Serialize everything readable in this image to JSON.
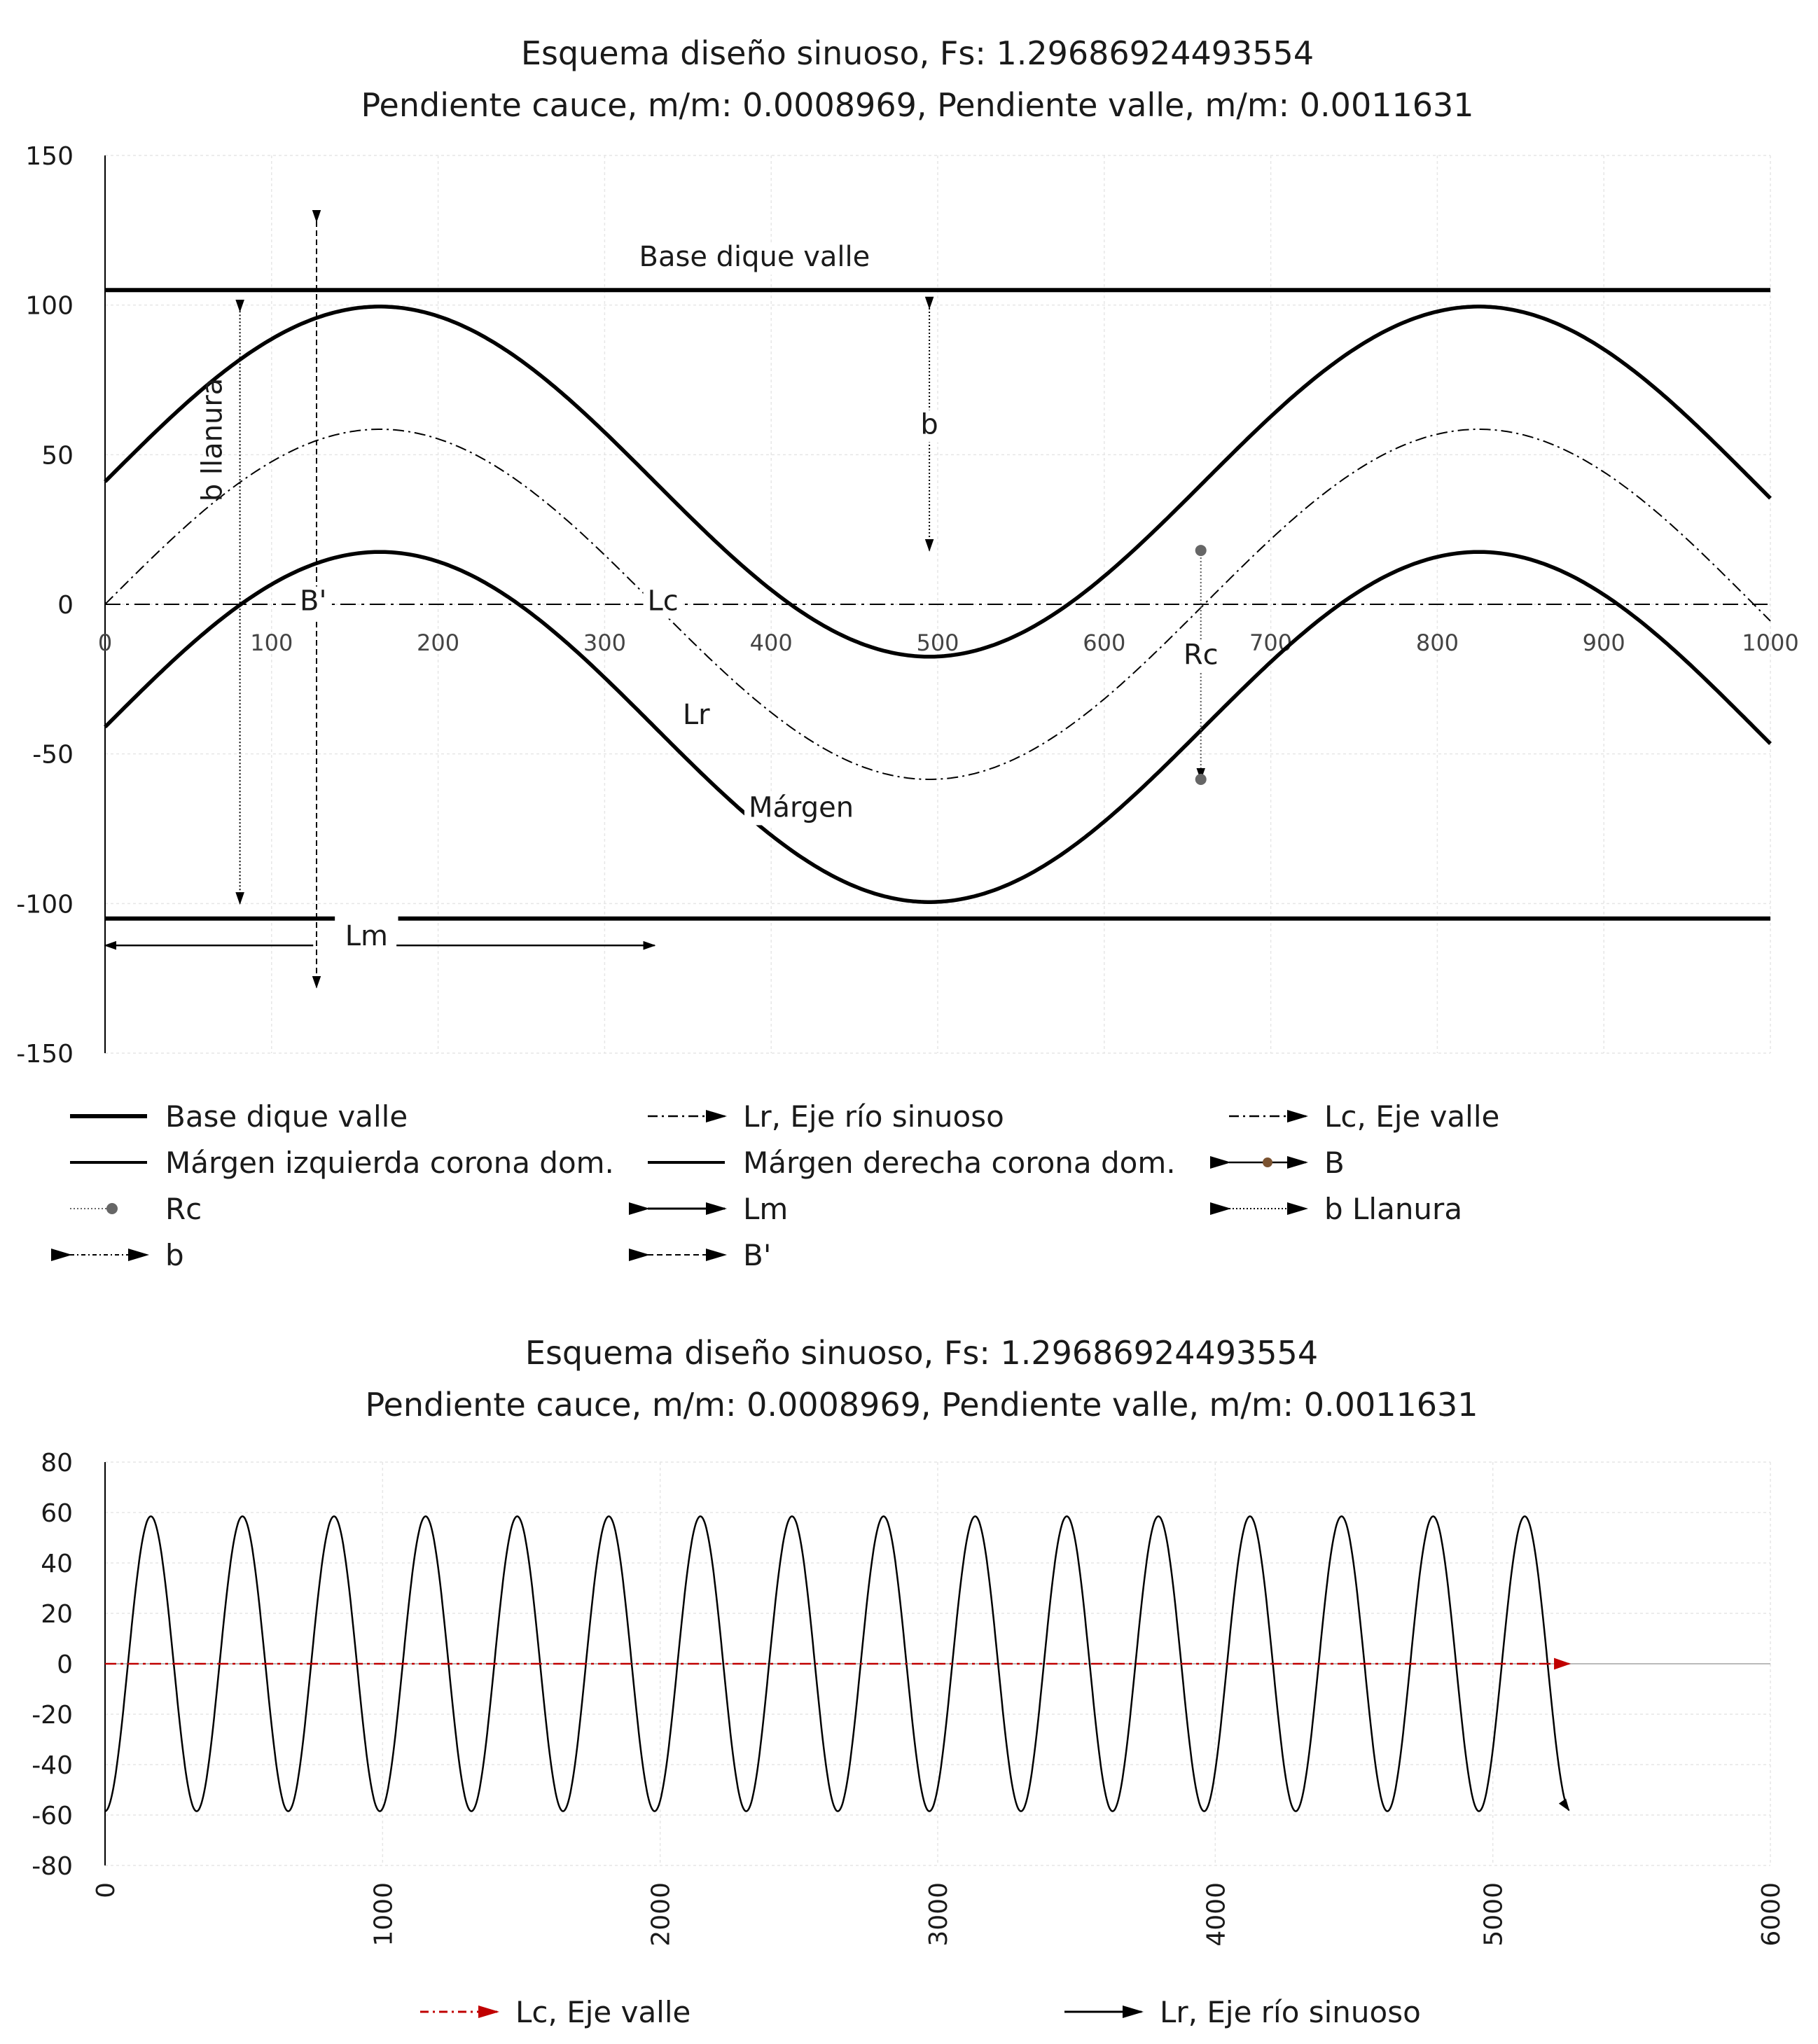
{
  "chart_data": [
    {
      "type": "line",
      "title": "Esquema diseño sinuoso, Fs: 1.29686924493554",
      "subtitle": "Pendiente cauce, m/m: 0.0008969, Pendiente valle, m/m: 0.0011631",
      "xlim": [
        0,
        1000
      ],
      "ylim": [
        -150,
        150
      ],
      "x_ticks": [
        "0",
        "100",
        "200",
        "300",
        "400",
        "500",
        "600",
        "700",
        "800",
        "900",
        "1000"
      ],
      "y_ticks": [
        "150",
        "100",
        "50",
        "0",
        "-50",
        "-100",
        "-150"
      ],
      "grid": true,
      "sine": {
        "amplitude": 58.5,
        "wavelength": 660,
        "phase_x": 165
      },
      "series": [
        {
          "name": "Base dique valle",
          "style": "solid-thick",
          "y": 105
        },
        {
          "name": "Base dique valle",
          "style": "solid-thick",
          "y": -105
        },
        {
          "name": "Lr, Eje río sinuoso",
          "style": "dashdot-thin",
          "offset": 0
        },
        {
          "name": "Lc, Eje valle",
          "style": "dashdot",
          "y": 0
        },
        {
          "name": "Márgen izquierda corona dom.",
          "style": "solid",
          "offset": 41
        },
        {
          "name": "Márgen derecha corona dom.",
          "style": "solid",
          "offset": -41
        }
      ],
      "annotations": [
        {
          "text": "Base dique valle",
          "x": 390,
          "y": 113
        },
        {
          "text": "b llanura",
          "x": 65,
          "y": 55,
          "rotated": true
        },
        {
          "text": "B'",
          "x": 125,
          "y": -2
        },
        {
          "text": "Lc",
          "x": 335,
          "y": -2
        },
        {
          "text": "b",
          "x": 495,
          "y": 57
        },
        {
          "text": "Rc",
          "x": 658,
          "y": -20
        },
        {
          "text": "Lr",
          "x": 355,
          "y": -40
        },
        {
          "text": "Márgen",
          "x": 418,
          "y": -71
        },
        {
          "text": "Lm",
          "x": 157,
          "y": -114
        }
      ],
      "markers": {
        "b_llanura": {
          "x": 81,
          "y1": 98,
          "y2": -100
        },
        "B_prime": {
          "x": 127,
          "y1": 128,
          "y2": -128
        },
        "b": {
          "x": 495,
          "y1": 99,
          "y2": 18
        },
        "Rc": {
          "x": 658,
          "y1": 18,
          "y2": -58.5
        },
        "Lm": {
          "y": -114,
          "x1": 0,
          "x2": 330
        }
      },
      "legend": {
        "position": "bottom",
        "items": [
          {
            "label": "Base dique valle",
            "symbol": "solid-thick"
          },
          {
            "label": "Lr, Eje río sinuoso",
            "symbol": "dashdot-arrow"
          },
          {
            "label": "Lc, Eje valle",
            "symbol": "dashdot-arrow"
          },
          {
            "label": "Márgen izquierda corona dom.",
            "symbol": "solid"
          },
          {
            "label": "Márgen derecha corona dom.",
            "symbol": "solid"
          },
          {
            "label": "B",
            "symbol": "double-arrow-dot-brown"
          },
          {
            "label": "Rc",
            "symbol": "dotted-dot"
          },
          {
            "label": "Lm",
            "symbol": "double-arrow"
          },
          {
            "label": "b Llanura",
            "symbol": "double-arrow-dotted"
          },
          {
            "label": "b",
            "symbol": "double-arrow-dashdot"
          },
          {
            "label": "B'",
            "symbol": "double-arrow-dashed"
          }
        ]
      }
    },
    {
      "type": "line",
      "title": "Esquema diseño sinuoso, Fs: 1.29686924493554",
      "subtitle": "Pendiente cauce, m/m: 0.0008969, Pendiente valle, m/m: 0.0011631",
      "xlim": [
        0,
        6000
      ],
      "ylim": [
        -80,
        80
      ],
      "x_ticks": [
        "0",
        "1000",
        "2000",
        "3000",
        "4000",
        "5000",
        "6000"
      ],
      "y_ticks": [
        "80",
        "60",
        "40",
        "20",
        "0",
        "-20",
        "-40",
        "-60",
        "-80"
      ],
      "grid": true,
      "sine": {
        "amplitude": 58.5,
        "wavelength": 330,
        "phase_x": 165,
        "x_end": 5275
      },
      "series": [
        {
          "name": "Lc, Eje valle",
          "color": "#c00000",
          "style": "dashdot-arrow",
          "x_start": 0,
          "x_end": 5275,
          "y": 0
        },
        {
          "name": "Lr, Eje río sinuoso",
          "color": "#000000",
          "style": "solid-arrow"
        }
      ],
      "legend": {
        "position": "bottom",
        "items": [
          {
            "label": "Lc, Eje valle",
            "color": "#c00000"
          },
          {
            "label": "Lr, Eje río sinuoso",
            "color": "#000000"
          }
        ]
      }
    }
  ]
}
